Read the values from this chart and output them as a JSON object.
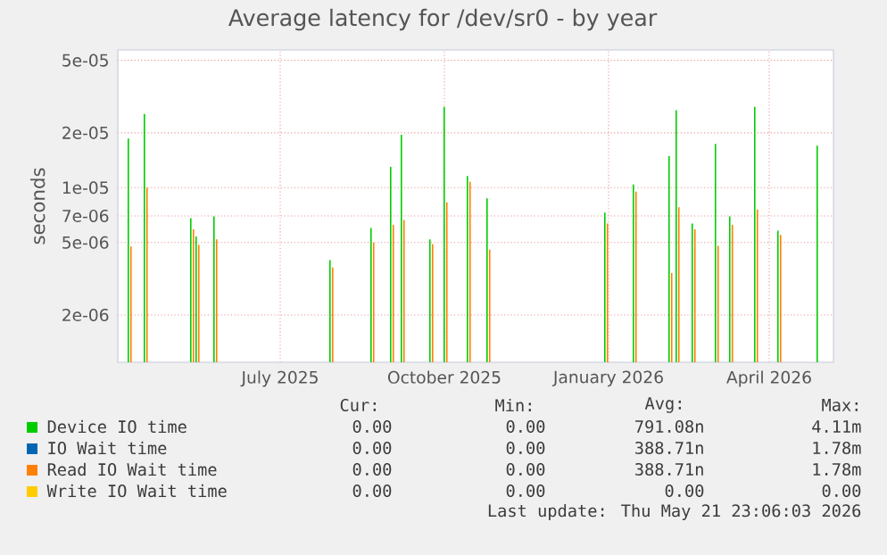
{
  "chart_data": {
    "type": "bar",
    "title": "Average latency for /dev/sr0 - by year",
    "ylabel": "seconds",
    "x": [
      "2025-04-22",
      "2025-05-01",
      "2025-05-27",
      "2025-05-30",
      "2025-06-09",
      "2025-08-13",
      "2025-09-05",
      "2025-09-16",
      "2025-09-22",
      "2025-10-08",
      "2025-10-16",
      "2025-10-29",
      "2025-11-09",
      "2026-01-14",
      "2026-01-30",
      "2026-02-19",
      "2026-02-23",
      "2026-03-04",
      "2026-03-17",
      "2026-03-25",
      "2026-04-08",
      "2026-04-21",
      "2026-05-13"
    ],
    "series": [
      {
        "name": "Device IO time",
        "color": "#00cc00",
        "values": [
          1.86e-05,
          2.54e-05,
          6.8e-06,
          5.4e-06,
          6.95e-06,
          4e-06,
          6e-06,
          1.3e-05,
          1.95e-05,
          5.2e-06,
          2.78e-05,
          1.16e-05,
          8.75e-06,
          7.3e-06,
          1.04e-05,
          1.49e-05,
          2.66e-05,
          6.35e-06,
          1.74e-05,
          6.95e-06,
          2.78e-05,
          5.8e-06,
          1.7e-05
        ]
      },
      {
        "name": "IO Wait time",
        "color": "#0066b3",
        "values": [
          null,
          null,
          null,
          null,
          null,
          null,
          null,
          null,
          null,
          null,
          null,
          null,
          null,
          null,
          null,
          null,
          null,
          null,
          null,
          null,
          null,
          null,
          null
        ]
      },
      {
        "name": "Read IO Wait time",
        "color": "#ff8000",
        "values": [
          4.75e-06,
          1e-05,
          5.9e-06,
          4.85e-06,
          5.2e-06,
          3.65e-06,
          5e-06,
          6.25e-06,
          6.65e-06,
          4.9e-06,
          8.3e-06,
          1.08e-05,
          4.57e-06,
          6.35e-06,
          9.5e-06,
          3.4e-06,
          7.8e-06,
          5.9e-06,
          4.8e-06,
          6.25e-06,
          7.6e-06,
          5.5e-06,
          null
        ]
      },
      {
        "name": "Write IO Wait time",
        "color": "#ffcc00",
        "values": [
          null,
          null,
          null,
          null,
          null,
          null,
          null,
          null,
          null,
          null,
          null,
          null,
          null,
          null,
          null,
          null,
          null,
          null,
          null,
          null,
          null,
          null,
          null
        ]
      }
    ],
    "xlim": [
      "2025-04-15",
      "2026-05-21"
    ],
    "xticks": [
      {
        "value": "2025-07-15",
        "label": "July 2025"
      },
      {
        "value": "2025-10-15",
        "label": "October 2025"
      },
      {
        "value": "2026-01-15",
        "label": "January 2026"
      },
      {
        "value": "2026-04-15",
        "label": "April 2026"
      }
    ],
    "ylim": [
      1.1e-06,
      5.7e-05
    ],
    "yticks": [
      {
        "value": 2e-06,
        "label": "2e-06"
      },
      {
        "value": 5e-06,
        "label": "5e-06"
      },
      {
        "value": 7e-06,
        "label": "7e-06"
      },
      {
        "value": 1e-05,
        "label": "1e-05"
      },
      {
        "value": 2e-05,
        "label": "2e-05"
      },
      {
        "value": 5e-05,
        "label": "5e-05"
      }
    ],
    "log": true,
    "grid": true,
    "legend": "bottom",
    "annotations": [
      "Cur:",
      "Min:",
      "Avg:",
      "Max:",
      "0.00",
      "0.00",
      "791.08n",
      "4.11m",
      "0.00",
      "0.00",
      "388.71n",
      "1.78m",
      "0.00",
      "0.00",
      "388.71n",
      "1.78m",
      "0.00",
      "0.00",
      "0.00",
      "0.00",
      "Last update: Thu May 21 23:06:03 2026"
    ]
  }
}
